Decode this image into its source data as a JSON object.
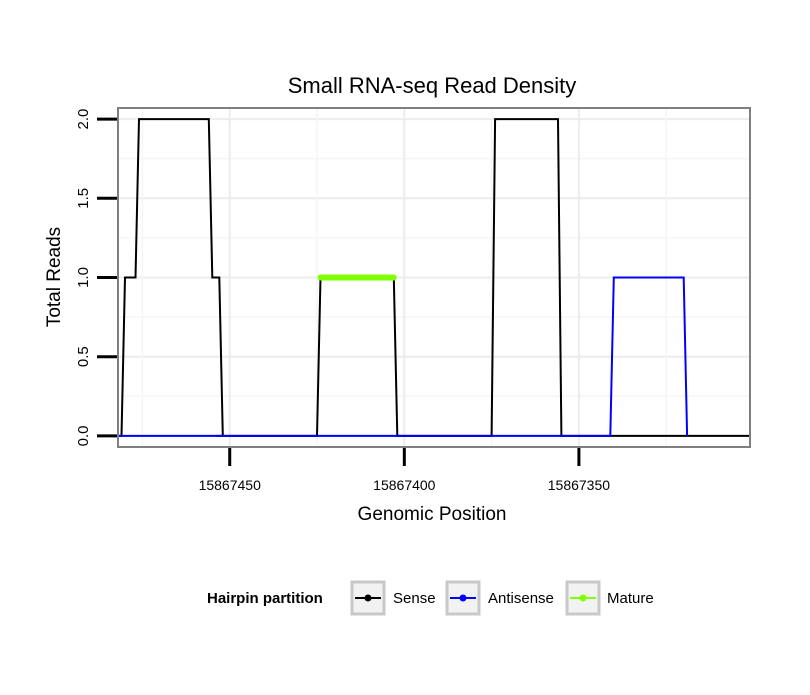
{
  "chart_data": {
    "type": "line",
    "title": "Small RNA-seq Read Density",
    "xlabel": "Genomic Position",
    "ylabel": "Total Reads",
    "x_reversed": true,
    "xlim": [
      15867482,
      15867301
    ],
    "ylim": [
      -0.07,
      2.07
    ],
    "x_ticks": [
      15867450,
      15867400,
      15867350
    ],
    "x_tick_labels": [
      "15867450",
      "15867400",
      "15867350"
    ],
    "y_ticks": [
      0.0,
      0.5,
      1.0,
      1.5,
      2.0
    ],
    "y_tick_labels": [
      "0.0",
      "0.5",
      "1.0",
      "1.5",
      "2.0"
    ],
    "grid": true,
    "legend_title": "Hairpin partition",
    "legend_position": "bottom",
    "series": [
      {
        "name": "Sense",
        "color": "#000000",
        "x": [
          15867482,
          15867481,
          15867480,
          15867477,
          15867476,
          15867456,
          15867455,
          15867453,
          15867452,
          15867454,
          15867426,
          15867425,
          15867424,
          15867403,
          15867402,
          15867376,
          15867375,
          15867374,
          15867356,
          15867355,
          15867354,
          15867301
        ],
        "y": [
          0,
          0,
          1,
          1,
          2,
          2,
          1,
          1,
          0,
          0,
          0,
          0,
          1,
          1,
          0,
          0,
          0,
          2,
          2,
          0,
          0,
          0
        ]
      },
      {
        "name": "Antisense",
        "color": "#0000ff",
        "x": [
          15867482,
          15867341,
          15867340,
          15867320,
          15867319
        ],
        "y": [
          0,
          0,
          1,
          1,
          0
        ]
      },
      {
        "name": "Mature",
        "color": "#7fff00",
        "x": [
          15867424,
          15867403
        ],
        "y": [
          1,
          1
        ]
      }
    ]
  }
}
